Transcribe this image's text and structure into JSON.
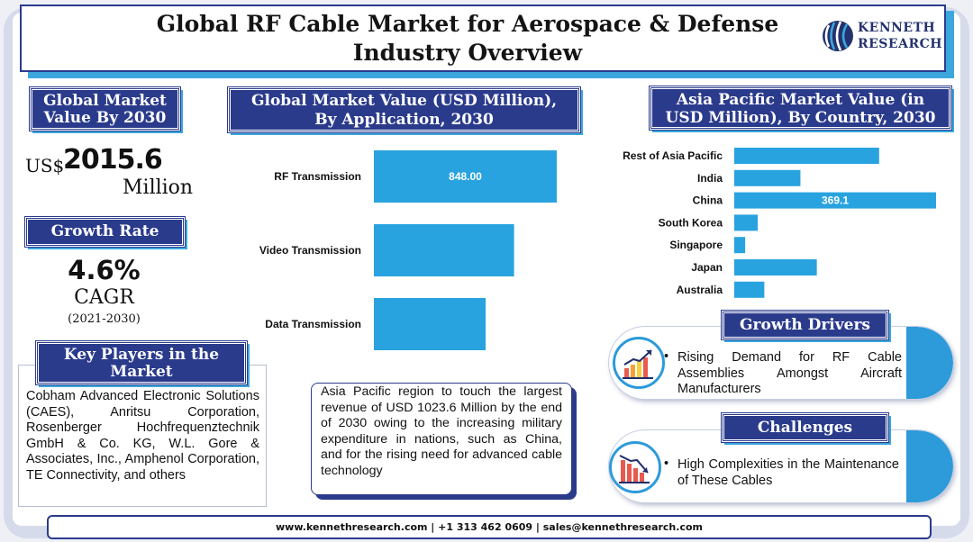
{
  "header": {
    "title_line1": "Global RF Cable Market for Aerospace & Defense",
    "title_line2": "Industry Overview"
  },
  "logo": {
    "line1": "KENNETH",
    "line2": "RESEARCH",
    "icon": "kenneth-research-globe-logo"
  },
  "market_value": {
    "heading_line1": "Global Market",
    "heading_line2": "Value By 2030",
    "currency": "US$",
    "amount": "2015.6",
    "unit": "Million"
  },
  "growth": {
    "heading": "Growth Rate",
    "value": "4.6%",
    "label": "CAGR",
    "period": "(2021-2030)"
  },
  "key_players": {
    "heading_line1": "Key Players in the",
    "heading_line2": "Market",
    "text": "Cobham Advanced Electronic Solutions (CAES), Anritsu Corporation, Rosenberger Hochfrequenztechnik GmbH & Co. KG, W.L. Gore & Associates, Inc., Amphenol Corporation, TE Connectivity, and others"
  },
  "chart_application": {
    "heading_line1": "Global Market Value (USD Million),",
    "heading_line2": "By Application, 2030"
  },
  "chart_country": {
    "heading_line1": "Asia Pacific Market Value (in",
    "heading_line2": "USD Million), By Country, 2030"
  },
  "chart_data": [
    {
      "type": "bar",
      "orientation": "horizontal",
      "title": "Global Market Value (USD Million), By Application, 2030",
      "categories": [
        "RF Transmission",
        "Video Transmission",
        "Data Transmission"
      ],
      "values": [
        848.0,
        650,
        518
      ],
      "data_labels": [
        "848.00",
        "",
        ""
      ],
      "bar_color": "#29a3df",
      "xlim": [
        0,
        848.0
      ]
    },
    {
      "type": "bar",
      "orientation": "horizontal",
      "title": "Asia Pacific Market Value (in USD Million), By Country, 2030",
      "categories": [
        "Rest of Asia Pacific",
        "India",
        "China",
        "South Korea",
        "Singapore",
        "Japan",
        "Australia"
      ],
      "values": [
        265,
        121,
        369.1,
        43,
        20,
        151,
        55
      ],
      "data_labels": [
        "",
        "",
        "369.1",
        "",
        "",
        "",
        ""
      ],
      "bar_color": "#29a3df",
      "xlim": [
        0,
        369.1
      ]
    }
  ],
  "asia_note": {
    "text": "Asia Pacific region to touch the largest revenue of USD 1023.6 Million by the end of 2030 owing to the increasing military expenditure in nations, such as China, and for the rising need for advanced cable technology"
  },
  "growth_drivers": {
    "heading": "Growth Drivers",
    "icon": "rising-bar-chart-icon",
    "bullet": "•",
    "text": "Rising Demand for RF Cable Assemblies Amongst Aircraft Manufacturers"
  },
  "challenges": {
    "heading": "Challenges",
    "icon": "declining-bar-chart-icon",
    "bullet": "•",
    "text": "High Complexities in the Maintenance of These Cables"
  },
  "footer": {
    "text": "www.kennethresearch.com | +1 313 462 0609 | sales@kennethresearch.com"
  }
}
